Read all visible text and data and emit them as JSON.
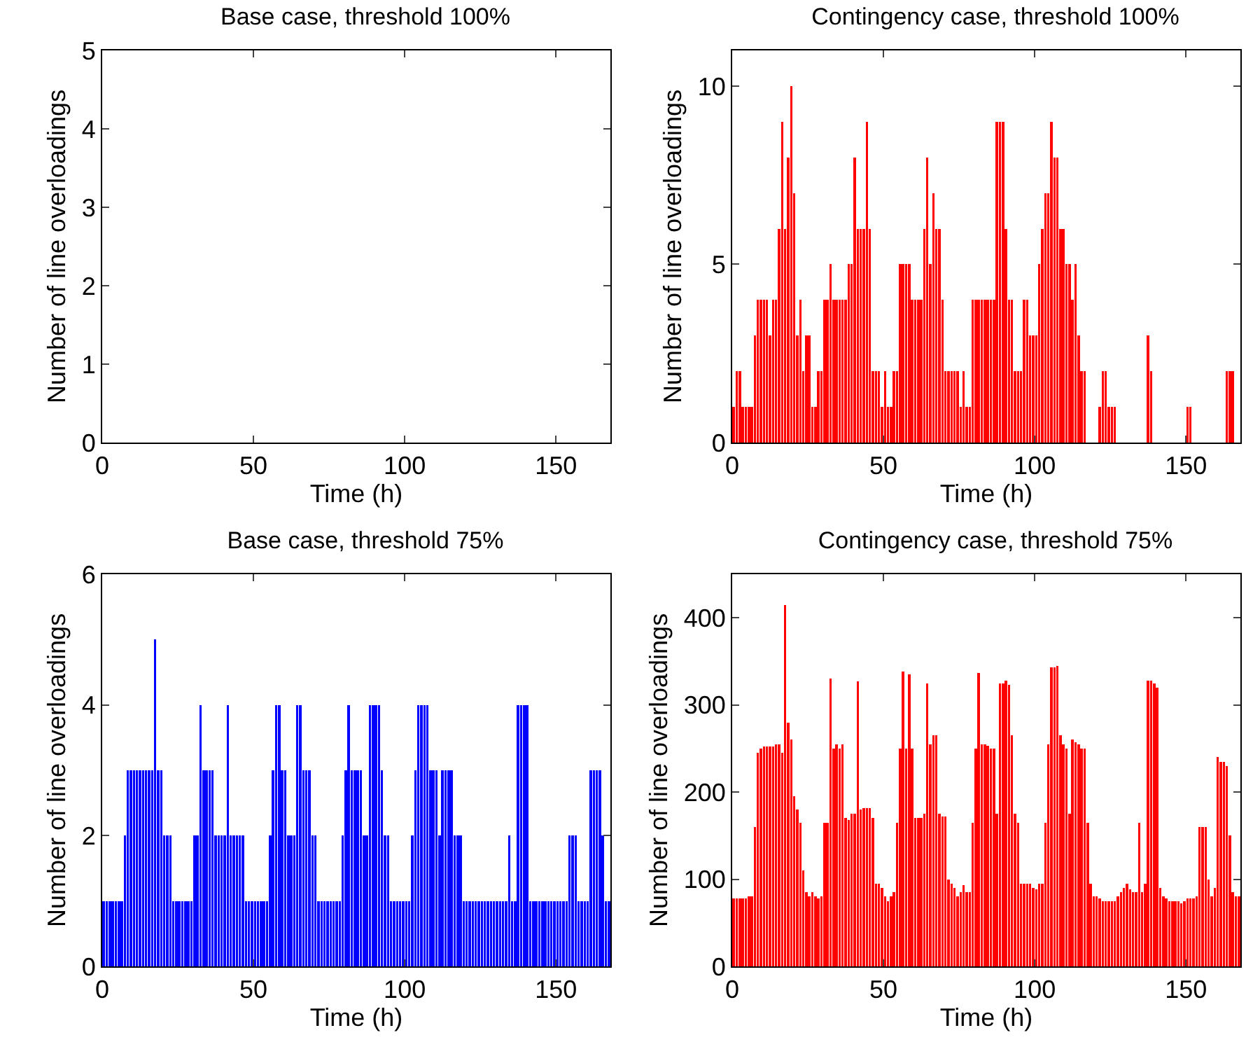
{
  "chart_data": [
    {
      "type": "bar",
      "title": "Base case, threshold 100%",
      "xlabel": "Time (h)",
      "ylabel": "Number of line overloadings",
      "color": "#0000ff",
      "x": [
        0.5,
        1.5,
        2.5,
        3.5,
        4.5,
        5.5,
        6.5,
        7.5,
        8.5,
        9.5,
        10.5,
        11.5,
        12.5,
        13.5,
        14.5,
        15.5,
        16.5,
        17.5,
        18.5,
        19.5,
        20.5,
        21.5,
        22.5,
        23.5,
        24.5,
        25.5,
        26.5,
        27.5,
        28.5,
        29.5,
        30.5,
        31.5,
        32.5,
        33.5,
        34.5,
        35.5,
        36.5,
        37.5,
        38.5,
        39.5,
        40.5,
        41.5,
        42.5,
        43.5,
        44.5,
        45.5,
        46.5,
        47.5,
        48.5,
        49.5,
        50.5,
        51.5,
        52.5,
        53.5,
        54.5,
        55.5,
        56.5,
        57.5,
        58.5,
        59.5,
        60.5,
        61.5,
        62.5,
        63.5,
        64.5,
        65.5,
        66.5,
        67.5,
        68.5,
        69.5,
        70.5,
        71.5,
        72.5,
        73.5,
        74.5,
        75.5,
        76.5,
        77.5,
        78.5,
        79.5,
        80.5,
        81.5,
        82.5,
        83.5,
        84.5,
        85.5,
        86.5,
        87.5,
        88.5,
        89.5,
        90.5,
        91.5,
        92.5,
        93.5,
        94.5,
        95.5,
        96.5,
        97.5,
        98.5,
        99.5,
        100.5,
        101.5,
        102.5,
        103.5,
        104.5,
        105.5,
        106.5,
        107.5,
        108.5,
        109.5,
        110.5,
        111.5,
        112.5,
        113.5,
        114.5,
        115.5,
        116.5,
        117.5,
        118.5,
        119.5,
        120.5,
        121.5,
        122.5,
        123.5,
        124.5,
        125.5,
        126.5,
        127.5,
        128.5,
        129.5,
        130.5,
        131.5,
        132.5,
        133.5,
        134.5,
        135.5,
        136.5,
        137.5,
        138.5,
        139.5,
        140.5,
        141.5,
        142.5,
        143.5,
        144.5,
        145.5,
        146.5,
        147.5,
        148.5,
        149.5,
        150.5,
        151.5,
        152.5,
        153.5,
        154.5,
        155.5,
        156.5,
        157.5,
        158.5,
        159.5,
        160.5,
        161.5,
        162.5,
        163.5,
        164.5,
        165.5,
        166.5,
        167.5
      ],
      "values": [
        0,
        0,
        0,
        0,
        0,
        0,
        0,
        0,
        0,
        0,
        0,
        0,
        0,
        0,
        0,
        0,
        0,
        0,
        0,
        0,
        0,
        0,
        0,
        0,
        0,
        0,
        0,
        0,
        0,
        0,
        0,
        0,
        0,
        0,
        0,
        0,
        0,
        0,
        0,
        0,
        0,
        0,
        0,
        0,
        0,
        0,
        0,
        0,
        0,
        0,
        0,
        0,
        0,
        0,
        0,
        0,
        0,
        0,
        0,
        0,
        0,
        0,
        0,
        0,
        0,
        0,
        0,
        0,
        0,
        0,
        0,
        0,
        0,
        0,
        0,
        0,
        0,
        0,
        0,
        0,
        0,
        0,
        0,
        0,
        0,
        0,
        0,
        0,
        0,
        0,
        0,
        0,
        0,
        0,
        0,
        0,
        0,
        0,
        0,
        0,
        0,
        0,
        0,
        0,
        0,
        0,
        0,
        0,
        0,
        0,
        0,
        0,
        0,
        0,
        0,
        0,
        0,
        0,
        0,
        0,
        0,
        0,
        0,
        0,
        0,
        0,
        0,
        0,
        0,
        0,
        0,
        0,
        0,
        0,
        0,
        0,
        0,
        0,
        0,
        0,
        0,
        0,
        0,
        0,
        0,
        0,
        0,
        0,
        0,
        0,
        0,
        0,
        0,
        0,
        0,
        0,
        0,
        0,
        0,
        0,
        0,
        0,
        0,
        0,
        0,
        0,
        0,
        0
      ],
      "xlim": [
        0,
        168
      ],
      "xticks": [
        0,
        50,
        100,
        150
      ],
      "ylim": [
        0,
        5
      ],
      "yticks": [
        0,
        1,
        2,
        3,
        4,
        5
      ]
    },
    {
      "type": "bar",
      "title": "Contingency case, threshold 100%",
      "xlabel": "Time (h)",
      "ylabel": "Number of line overloadings",
      "color": "#ff0000",
      "x": [
        0.5,
        1.5,
        2.5,
        3.5,
        4.5,
        5.5,
        6.5,
        7.5,
        8.5,
        9.5,
        10.5,
        11.5,
        12.5,
        13.5,
        14.5,
        15.5,
        16.5,
        17.5,
        18.5,
        19.5,
        20.5,
        21.5,
        22.5,
        23.5,
        24.5,
        25.5,
        26.5,
        27.5,
        28.5,
        29.5,
        30.5,
        31.5,
        32.5,
        33.5,
        34.5,
        35.5,
        36.5,
        37.5,
        38.5,
        39.5,
        40.5,
        41.5,
        42.5,
        43.5,
        44.5,
        45.5,
        46.5,
        47.5,
        48.5,
        49.5,
        50.5,
        51.5,
        52.5,
        53.5,
        54.5,
        55.5,
        56.5,
        57.5,
        58.5,
        59.5,
        60.5,
        61.5,
        62.5,
        63.5,
        64.5,
        65.5,
        66.5,
        67.5,
        68.5,
        69.5,
        70.5,
        71.5,
        72.5,
        73.5,
        74.5,
        75.5,
        76.5,
        77.5,
        78.5,
        79.5,
        80.5,
        81.5,
        82.5,
        83.5,
        84.5,
        85.5,
        86.5,
        87.5,
        88.5,
        89.5,
        90.5,
        91.5,
        92.5,
        93.5,
        94.5,
        95.5,
        96.5,
        97.5,
        98.5,
        99.5,
        100.5,
        101.5,
        102.5,
        103.5,
        104.5,
        105.5,
        106.5,
        107.5,
        108.5,
        109.5,
        110.5,
        111.5,
        112.5,
        113.5,
        114.5,
        115.5,
        116.5,
        117.5,
        118.5,
        119.5,
        120.5,
        121.5,
        122.5,
        123.5,
        124.5,
        125.5,
        126.5,
        127.5,
        128.5,
        129.5,
        130.5,
        131.5,
        132.5,
        133.5,
        134.5,
        135.5,
        136.5,
        137.5,
        138.5,
        139.5,
        140.5,
        141.5,
        142.5,
        143.5,
        144.5,
        145.5,
        146.5,
        147.5,
        148.5,
        149.5,
        150.5,
        151.5,
        152.5,
        153.5,
        154.5,
        155.5,
        156.5,
        157.5,
        158.5,
        159.5,
        160.5,
        161.5,
        162.5,
        163.5,
        164.5,
        165.5,
        166.5,
        167.5
      ],
      "values": [
        1,
        2,
        2,
        1,
        1,
        1,
        1,
        3,
        4,
        4,
        4,
        4,
        3,
        4,
        4,
        6,
        9,
        6,
        8,
        10,
        7,
        3,
        4,
        2,
        3,
        3,
        1,
        1,
        2,
        2,
        4,
        4,
        5,
        4,
        4,
        4,
        4,
        4,
        5,
        5,
        8,
        6,
        6,
        6,
        9,
        6,
        2,
        2,
        2,
        1,
        2,
        1,
        1,
        2,
        2,
        5,
        5,
        5,
        5,
        4,
        4,
        4,
        4,
        6,
        8,
        5,
        7,
        6,
        6,
        4,
        2,
        2,
        2,
        2,
        2,
        1,
        2,
        1,
        1,
        4,
        4,
        4,
        4,
        4,
        4,
        4,
        4,
        9,
        9,
        9,
        6,
        4,
        4,
        2,
        2,
        2,
        4,
        4,
        3,
        3,
        3,
        5,
        6,
        7,
        7,
        9,
        8,
        8,
        6,
        6,
        5,
        5,
        4,
        5,
        3,
        2,
        2,
        0,
        0,
        0,
        0,
        1,
        2,
        2,
        1,
        1,
        1,
        0,
        0,
        0,
        0,
        0,
        0,
        0,
        0,
        0,
        0,
        3,
        2,
        0,
        0,
        0,
        0,
        0,
        0,
        0,
        0,
        0,
        0,
        0,
        1,
        1,
        0,
        0,
        0,
        0,
        0,
        0,
        0,
        0,
        0,
        0,
        0,
        2,
        2,
        2,
        0,
        0
      ],
      "xlim": [
        0,
        168
      ],
      "xticks": [
        0,
        50,
        100,
        150
      ],
      "ylim": [
        0,
        11
      ],
      "yticks": [
        0,
        5,
        10
      ]
    },
    {
      "type": "bar",
      "title": "Base case, threshold 75%",
      "xlabel": "Time (h)",
      "ylabel": "Number of line overloadings",
      "color": "#0000ff",
      "x": [
        0.5,
        1.5,
        2.5,
        3.5,
        4.5,
        5.5,
        6.5,
        7.5,
        8.5,
        9.5,
        10.5,
        11.5,
        12.5,
        13.5,
        14.5,
        15.5,
        16.5,
        17.5,
        18.5,
        19.5,
        20.5,
        21.5,
        22.5,
        23.5,
        24.5,
        25.5,
        26.5,
        27.5,
        28.5,
        29.5,
        30.5,
        31.5,
        32.5,
        33.5,
        34.5,
        35.5,
        36.5,
        37.5,
        38.5,
        39.5,
        40.5,
        41.5,
        42.5,
        43.5,
        44.5,
        45.5,
        46.5,
        47.5,
        48.5,
        49.5,
        50.5,
        51.5,
        52.5,
        53.5,
        54.5,
        55.5,
        56.5,
        57.5,
        58.5,
        59.5,
        60.5,
        61.5,
        62.5,
        63.5,
        64.5,
        65.5,
        66.5,
        67.5,
        68.5,
        69.5,
        70.5,
        71.5,
        72.5,
        73.5,
        74.5,
        75.5,
        76.5,
        77.5,
        78.5,
        79.5,
        80.5,
        81.5,
        82.5,
        83.5,
        84.5,
        85.5,
        86.5,
        87.5,
        88.5,
        89.5,
        90.5,
        91.5,
        92.5,
        93.5,
        94.5,
        95.5,
        96.5,
        97.5,
        98.5,
        99.5,
        100.5,
        101.5,
        102.5,
        103.5,
        104.5,
        105.5,
        106.5,
        107.5,
        108.5,
        109.5,
        110.5,
        111.5,
        112.5,
        113.5,
        114.5,
        115.5,
        116.5,
        117.5,
        118.5,
        119.5,
        120.5,
        121.5,
        122.5,
        123.5,
        124.5,
        125.5,
        126.5,
        127.5,
        128.5,
        129.5,
        130.5,
        131.5,
        132.5,
        133.5,
        134.5,
        135.5,
        136.5,
        137.5,
        138.5,
        139.5,
        140.5,
        141.5,
        142.5,
        143.5,
        144.5,
        145.5,
        146.5,
        147.5,
        148.5,
        149.5,
        150.5,
        151.5,
        152.5,
        153.5,
        154.5,
        155.5,
        156.5,
        157.5,
        158.5,
        159.5,
        160.5,
        161.5,
        162.5,
        163.5,
        164.5,
        165.5,
        166.5,
        167.5
      ],
      "values": [
        1,
        1,
        1,
        1,
        1,
        1,
        1,
        2,
        3,
        3,
        3,
        3,
        3,
        3,
        3,
        3,
        3,
        5,
        3,
        3,
        2,
        2,
        2,
        1,
        1,
        1,
        1,
        1,
        1,
        1,
        2,
        2,
        4,
        3,
        3,
        3,
        3,
        2,
        2,
        2,
        2,
        4,
        2,
        2,
        2,
        2,
        2,
        1,
        1,
        1,
        1,
        1,
        1,
        1,
        1,
        2,
        3,
        4,
        4,
        3,
        3,
        2,
        2,
        2,
        4,
        4,
        3,
        3,
        3,
        2,
        2,
        1,
        1,
        1,
        1,
        1,
        1,
        1,
        1,
        2,
        3,
        4,
        3,
        3,
        3,
        3,
        2,
        2,
        4,
        4,
        4,
        4,
        3,
        2,
        2,
        1,
        1,
        1,
        1,
        1,
        1,
        1,
        2,
        3,
        4,
        4,
        4,
        4,
        3,
        3,
        3,
        2,
        3,
        3,
        3,
        3,
        2,
        2,
        2,
        1,
        1,
        1,
        1,
        1,
        1,
        1,
        1,
        1,
        1,
        1,
        1,
        1,
        1,
        1,
        2,
        1,
        1,
        4,
        4,
        4,
        4,
        1,
        1,
        1,
        1,
        1,
        1,
        1,
        1,
        1,
        1,
        1,
        1,
        1,
        2,
        2,
        2,
        1,
        1,
        1,
        1,
        3,
        3,
        3,
        3,
        2,
        1,
        1
      ],
      "xlim": [
        0,
        168
      ],
      "xticks": [
        0,
        50,
        100,
        150
      ],
      "ylim": [
        0,
        6
      ],
      "yticks": [
        0,
        2,
        4,
        6
      ]
    },
    {
      "type": "bar",
      "title": "Contingency case, threshold 75%",
      "xlabel": "Time (h)",
      "ylabel": "Number of line overloadings",
      "color": "#ff0000",
      "x": [
        0.5,
        1.5,
        2.5,
        3.5,
        4.5,
        5.5,
        6.5,
        7.5,
        8.5,
        9.5,
        10.5,
        11.5,
        12.5,
        13.5,
        14.5,
        15.5,
        16.5,
        17.5,
        18.5,
        19.5,
        20.5,
        21.5,
        22.5,
        23.5,
        24.5,
        25.5,
        26.5,
        27.5,
        28.5,
        29.5,
        30.5,
        31.5,
        32.5,
        33.5,
        34.5,
        35.5,
        36.5,
        37.5,
        38.5,
        39.5,
        40.5,
        41.5,
        42.5,
        43.5,
        44.5,
        45.5,
        46.5,
        47.5,
        48.5,
        49.5,
        50.5,
        51.5,
        52.5,
        53.5,
        54.5,
        55.5,
        56.5,
        57.5,
        58.5,
        59.5,
        60.5,
        61.5,
        62.5,
        63.5,
        64.5,
        65.5,
        66.5,
        67.5,
        68.5,
        69.5,
        70.5,
        71.5,
        72.5,
        73.5,
        74.5,
        75.5,
        76.5,
        77.5,
        78.5,
        79.5,
        80.5,
        81.5,
        82.5,
        83.5,
        84.5,
        85.5,
        86.5,
        87.5,
        88.5,
        89.5,
        90.5,
        91.5,
        92.5,
        93.5,
        94.5,
        95.5,
        96.5,
        97.5,
        98.5,
        99.5,
        100.5,
        101.5,
        102.5,
        103.5,
        104.5,
        105.5,
        106.5,
        107.5,
        108.5,
        109.5,
        110.5,
        111.5,
        112.5,
        113.5,
        114.5,
        115.5,
        116.5,
        117.5,
        118.5,
        119.5,
        120.5,
        121.5,
        122.5,
        123.5,
        124.5,
        125.5,
        126.5,
        127.5,
        128.5,
        129.5,
        130.5,
        131.5,
        132.5,
        133.5,
        134.5,
        135.5,
        136.5,
        137.5,
        138.5,
        139.5,
        140.5,
        141.5,
        142.5,
        143.5,
        144.5,
        145.5,
        146.5,
        147.5,
        148.5,
        149.5,
        150.5,
        151.5,
        152.5,
        153.5,
        154.5,
        155.5,
        156.5,
        157.5,
        158.5,
        159.5,
        160.5,
        161.5,
        162.5,
        163.5,
        164.5,
        165.5,
        166.5,
        167.5
      ],
      "values": [
        78,
        78,
        78,
        78,
        78,
        80,
        80,
        160,
        245,
        250,
        252,
        252,
        252,
        252,
        255,
        255,
        245,
        415,
        280,
        260,
        195,
        180,
        165,
        110,
        85,
        80,
        85,
        80,
        78,
        80,
        165,
        165,
        330,
        250,
        255,
        250,
        255,
        170,
        168,
        175,
        175,
        327,
        180,
        182,
        182,
        182,
        170,
        95,
        95,
        90,
        80,
        75,
        80,
        85,
        165,
        250,
        338,
        250,
        335,
        250,
        170,
        170,
        170,
        175,
        325,
        255,
        265,
        265,
        175,
        172,
        172,
        100,
        95,
        90,
        80,
        85,
        93,
        85,
        85,
        165,
        250,
        337,
        255,
        255,
        253,
        250,
        250,
        175,
        325,
        325,
        328,
        323,
        265,
        175,
        165,
        95,
        95,
        95,
        95,
        90,
        88,
        95,
        95,
        165,
        255,
        343,
        343,
        345,
        265,
        255,
        250,
        175,
        260,
        257,
        255,
        250,
        250,
        165,
        95,
        80,
        80,
        78,
        75,
        75,
        75,
        75,
        75,
        80,
        85,
        90,
        95,
        88,
        85,
        85,
        165,
        85,
        95,
        328,
        328,
        325,
        320,
        90,
        80,
        78,
        75,
        75,
        75,
        75,
        72,
        75,
        78,
        78,
        78,
        80,
        160,
        160,
        160,
        100,
        80,
        90,
        240,
        235,
        235,
        230,
        150,
        85,
        80,
        80
      ],
      "xlim": [
        0,
        168
      ],
      "xticks": [
        0,
        50,
        100,
        150
      ],
      "ylim": [
        0,
        450
      ],
      "yticks": [
        0,
        100,
        200,
        300,
        400
      ]
    }
  ]
}
